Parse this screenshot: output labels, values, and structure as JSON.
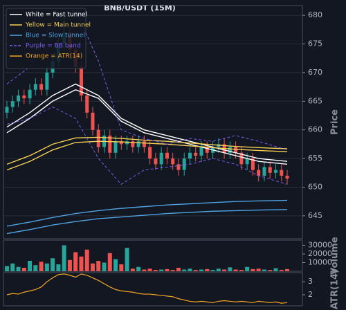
{
  "chart_data": [
    {
      "type": "candlestick",
      "title": "BNB/USDT (15M)",
      "ylabel": "Price",
      "up_color": "#26a69a",
      "down_color": "#ef5350",
      "ylim": [
        641,
        681.7
      ],
      "yticks": [
        645,
        650,
        655,
        660,
        665,
        670,
        675,
        680
      ],
      "grid": true,
      "legend": "upper left",
      "open": [
        663,
        664,
        665,
        666,
        665.5,
        667,
        668,
        667,
        670,
        672,
        675,
        677,
        674,
        671,
        666,
        663,
        660,
        657,
        659,
        656,
        658,
        657.5,
        658,
        657,
        658,
        657,
        655,
        654,
        656,
        655,
        654,
        653,
        655,
        656,
        655.5,
        657,
        656,
        657,
        657.5,
        656,
        657,
        656,
        654,
        655,
        653,
        652,
        653.5,
        652.5,
        653,
        652
      ],
      "high": [
        665,
        666,
        667,
        667,
        668,
        669,
        669,
        671,
        673,
        676,
        680,
        678,
        675,
        672,
        667,
        664,
        661,
        660,
        660,
        659,
        659,
        659,
        659,
        659,
        659,
        658,
        656,
        657,
        657,
        656,
        655,
        656,
        657,
        657,
        658,
        658,
        658,
        658.5,
        658.5,
        658,
        658,
        657,
        656,
        656,
        654,
        654.5,
        654.5,
        654,
        654,
        653
      ],
      "low": [
        662,
        663,
        664,
        664.5,
        664.5,
        666,
        666,
        666,
        669,
        671,
        674,
        673,
        670,
        665,
        662,
        659,
        656,
        656,
        655,
        655,
        656.5,
        656.5,
        656,
        656,
        656,
        654,
        653,
        653,
        654,
        653,
        652,
        652,
        654,
        654.5,
        654.5,
        655,
        655,
        656,
        655,
        655,
        655,
        653,
        653,
        652,
        651,
        651,
        651.5,
        651.5,
        651,
        650.5
      ],
      "close": [
        664,
        665,
        666,
        665.5,
        667,
        668,
        667,
        670,
        672,
        675,
        677,
        674,
        671,
        666,
        663,
        660,
        657,
        659,
        656,
        658,
        657.5,
        658,
        657,
        658,
        657,
        655,
        654,
        656,
        655,
        654,
        653,
        655,
        656,
        655.5,
        657,
        656,
        657,
        657.5,
        656,
        657,
        656,
        654,
        655,
        653,
        652,
        653.5,
        652.5,
        653,
        652,
        651.5
      ],
      "line_x": [
        0,
        4,
        8,
        12,
        16,
        20,
        24,
        28,
        32,
        36,
        40,
        44,
        49
      ],
      "overlays": [
        {
          "name": "White = Fast tunnel",
          "color": "#ffffff",
          "dashed": false,
          "lines": [
            [
              660.5,
              663,
              666,
              668,
              666,
              662,
              660,
              659,
              658,
              657,
              656,
              655,
              654.5
            ],
            [
              659.5,
              662,
              665,
              667,
              665.5,
              661.5,
              659.5,
              658.5,
              657.5,
              656.5,
              655.5,
              654.5,
              654
            ]
          ]
        },
        {
          "name": "Yellow = Main tunnel",
          "color": "#f7d154",
          "dashed": false,
          "lines": [
            [
              654,
              655.5,
              657.5,
              658.6,
              658.7,
              658.5,
              658.2,
              658,
              657.7,
              657.4,
              657.1,
              656.9,
              656.7
            ],
            [
              653,
              654.5,
              656.5,
              657.8,
              658,
              657.9,
              657.7,
              657.5,
              657.2,
              656.9,
              656.6,
              656.4,
              656.2
            ]
          ]
        },
        {
          "name": "Blue = Slow tunnel",
          "color": "#4fa3e0",
          "dashed": false,
          "lines": [
            [
              643.2,
              643.9,
              644.7,
              645.4,
              645.9,
              646.3,
              646.6,
              646.9,
              647.1,
              647.3,
              647.5,
              647.6,
              647.7
            ],
            [
              641.9,
              642.6,
              643.4,
              644,
              644.5,
              644.8,
              645.1,
              645.4,
              645.6,
              645.8,
              645.9,
              646.0,
              646.1
            ]
          ]
        },
        {
          "name": "Purple = BB band",
          "color": "#7b5cf0",
          "dashed": true,
          "lines": [
            [
              668,
              671,
              679,
              681,
              672,
              660,
              658.5,
              657.5,
              658.5,
              658,
              659,
              658,
              656.5
            ],
            [
              661,
              662,
              664,
              662,
              655,
              650.5,
              653,
              653.5,
              654,
              655,
              654,
              652,
              650.5
            ]
          ]
        }
      ]
    },
    {
      "type": "bar",
      "ylabel": "Volume",
      "ylim": [
        0,
        36000
      ],
      "yticks": [
        10000,
        20000,
        30000
      ],
      "values": [
        6000,
        9000,
        5000,
        4000,
        12000,
        7000,
        11000,
        9000,
        15000,
        8000,
        30000,
        13000,
        22000,
        17000,
        25000,
        9000,
        12000,
        10000,
        21000,
        14000,
        8000,
        27000,
        3000,
        5000,
        2000,
        3000,
        1500,
        2000,
        2500,
        1500,
        4000,
        2000,
        3000,
        1500,
        2000,
        2500,
        1500,
        3000,
        2000,
        4500,
        2000,
        1500,
        5000,
        2500,
        3000,
        2000,
        1500,
        3500,
        1500,
        2500
      ]
    },
    {
      "type": "line",
      "ylabel": "ATR(14)",
      "ylim": [
        1.15,
        3.7
      ],
      "yticks": [
        2,
        3
      ],
      "series": [
        {
          "name": "Orange = ATR(14)",
          "color": "#f5a623",
          "values": [
            2.0,
            2.1,
            2.05,
            2.2,
            2.3,
            2.4,
            2.6,
            3.0,
            3.3,
            3.55,
            3.6,
            3.5,
            3.35,
            3.6,
            3.5,
            3.3,
            3.1,
            2.85,
            2.6,
            2.4,
            2.3,
            2.25,
            2.2,
            2.1,
            2.05,
            2.05,
            2.0,
            1.95,
            1.9,
            1.85,
            1.7,
            1.6,
            1.5,
            1.45,
            1.5,
            1.45,
            1.4,
            1.5,
            1.55,
            1.5,
            1.45,
            1.5,
            1.45,
            1.4,
            1.5,
            1.45,
            1.4,
            1.45,
            1.35,
            1.4
          ]
        }
      ]
    }
  ]
}
